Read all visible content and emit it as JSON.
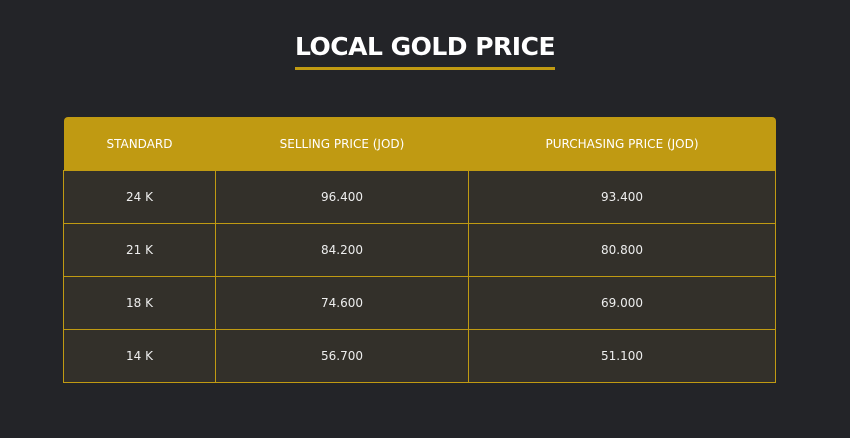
{
  "title": "LOCAL GOLD PRICE",
  "colors": {
    "background": "#232428",
    "accent": "#c09a12",
    "row": "#33302a"
  },
  "table": {
    "headers": [
      "STANDARD",
      "SELLING PRICE (JOD)",
      "PURCHASING PRICE (JOD)"
    ],
    "rows": [
      [
        "24 K",
        "96.400",
        "93.400"
      ],
      [
        "21 K",
        "84.200",
        "80.800"
      ],
      [
        "18 K",
        "74.600",
        "69.000"
      ],
      [
        "14 K",
        "56.700",
        "51.100"
      ]
    ]
  }
}
